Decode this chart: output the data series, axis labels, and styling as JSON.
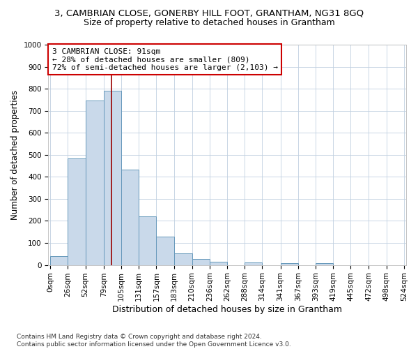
{
  "title": "3, CAMBRIAN CLOSE, GONERBY HILL FOOT, GRANTHAM, NG31 8GQ",
  "subtitle": "Size of property relative to detached houses in Grantham",
  "xlabel": "Distribution of detached houses by size in Grantham",
  "ylabel": "Number of detached properties",
  "bin_edges": [
    0,
    26,
    52,
    79,
    105,
    131,
    157,
    183,
    210,
    236,
    262,
    288,
    314,
    341,
    367,
    393,
    419,
    445,
    472,
    498,
    524
  ],
  "bar_heights": [
    40,
    485,
    748,
    790,
    433,
    222,
    128,
    52,
    27,
    15,
    0,
    10,
    0,
    8,
    0,
    8,
    0,
    0,
    0,
    0
  ],
  "bar_color": "#c9d9ea",
  "bar_edge_color": "#6699bb",
  "vline_x": 91,
  "vline_color": "#990000",
  "annotation_line1": "3 CAMBRIAN CLOSE: 91sqm",
  "annotation_line2": "← 28% of detached houses are smaller (809)",
  "annotation_line3": "72% of semi-detached houses are larger (2,103) →",
  "annotation_box_color": "#ffffff",
  "annotation_box_edge_color": "#cc0000",
  "ylim": [
    0,
    1000
  ],
  "yticks": [
    0,
    100,
    200,
    300,
    400,
    500,
    600,
    700,
    800,
    900,
    1000
  ],
  "grid_color": "#c0d0e0",
  "footer": "Contains HM Land Registry data © Crown copyright and database right 2024.\nContains public sector information licensed under the Open Government Licence v3.0.",
  "title_fontsize": 9.5,
  "subtitle_fontsize": 9,
  "xlabel_fontsize": 9,
  "ylabel_fontsize": 8.5,
  "tick_fontsize": 7.5,
  "annotation_fontsize": 8,
  "footer_fontsize": 6.5
}
